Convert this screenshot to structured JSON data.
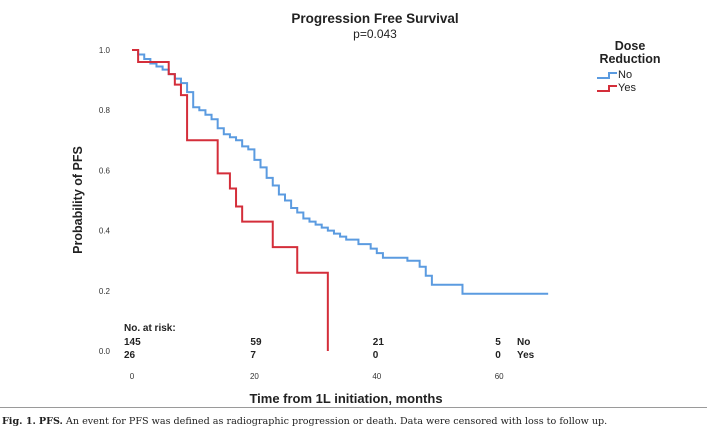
{
  "chart_data": {
    "type": "line",
    "subtype": "kaplan-meier-step",
    "title": "Progression Free Survival",
    "subtitle": "p=0.043",
    "xlabel": "Time from 1L initiation, months",
    "ylabel": "Probability of PFS",
    "xlim": [
      -2,
      70
    ],
    "ylim": [
      0,
      1.0
    ],
    "xticks": [
      0,
      20,
      40,
      60
    ],
    "yticks": [
      0.0,
      0.2,
      0.4,
      0.6,
      0.8,
      1.0
    ],
    "ytick_labels": [
      "0.0",
      "0.2",
      "0.4",
      "0.6",
      "0.8",
      "1.0"
    ],
    "grid": false,
    "legend": {
      "title_line1": "Dose",
      "title_line2": "Reduction",
      "placement": "top-right"
    },
    "series": [
      {
        "name": "No",
        "color": "#5b9be0",
        "x": [
          0,
          1,
          2,
          3,
          4,
          5,
          6,
          7,
          8,
          9,
          10,
          11,
          12,
          13,
          14,
          15,
          16,
          17,
          18,
          19,
          20,
          21,
          22,
          23,
          24,
          25,
          26,
          27,
          28,
          29,
          30,
          31,
          32,
          33,
          34,
          35,
          37,
          39,
          40,
          41,
          43,
          45,
          47,
          48,
          49,
          54,
          68
        ],
        "y": [
          1.0,
          0.985,
          0.97,
          0.955,
          0.945,
          0.935,
          0.92,
          0.905,
          0.89,
          0.86,
          0.81,
          0.8,
          0.785,
          0.77,
          0.74,
          0.72,
          0.71,
          0.7,
          0.68,
          0.67,
          0.635,
          0.61,
          0.575,
          0.55,
          0.52,
          0.5,
          0.475,
          0.46,
          0.44,
          0.43,
          0.42,
          0.41,
          0.4,
          0.39,
          0.38,
          0.37,
          0.355,
          0.34,
          0.325,
          0.31,
          0.31,
          0.3,
          0.28,
          0.25,
          0.22,
          0.19,
          0.19
        ]
      },
      {
        "name": "Yes",
        "color": "#d42e3a",
        "x": [
          0,
          1,
          6,
          7,
          8,
          9,
          10,
          14,
          16,
          17,
          18,
          23,
          27,
          32,
          32
        ],
        "y": [
          1.0,
          0.96,
          0.92,
          0.885,
          0.85,
          0.7,
          0.7,
          0.59,
          0.54,
          0.48,
          0.43,
          0.345,
          0.26,
          0.26,
          0.0
        ]
      }
    ],
    "risk_table": {
      "header": "No. at risk:",
      "times": [
        0,
        20,
        40,
        60
      ],
      "rows": [
        {
          "label": "No",
          "counts": [
            "145",
            "59",
            "21",
            "5"
          ]
        },
        {
          "label": "Yes",
          "counts": [
            "26",
            "7",
            "0",
            "0"
          ]
        }
      ]
    }
  },
  "caption": {
    "label": "Fig. 1.",
    "bold_term": "PFS.",
    "text": " An event for PFS was defined as radiographic progression or death. Data were censored with loss to follow up."
  }
}
